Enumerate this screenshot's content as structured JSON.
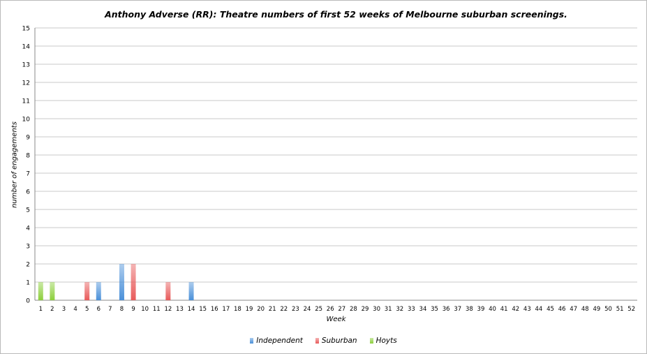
{
  "chart_data": {
    "type": "bar",
    "title": "Anthony Adverse (RR): Theatre numbers of first 52 weeks of Melbourne suburban screenings.",
    "xlabel": "Week",
    "ylabel": "number of engagements",
    "ylim": [
      0,
      15
    ],
    "yticks": [
      0,
      1,
      2,
      3,
      4,
      5,
      6,
      7,
      8,
      9,
      10,
      11,
      12,
      13,
      14,
      15
    ],
    "grid": true,
    "legend_position": "bottom",
    "categories": [
      "1",
      "2",
      "3",
      "4",
      "5",
      "6",
      "7",
      "8",
      "9",
      "10",
      "11",
      "12",
      "13",
      "14",
      "15",
      "16",
      "17",
      "18",
      "19",
      "20",
      "21",
      "22",
      "23",
      "24",
      "25",
      "26",
      "27",
      "28",
      "29",
      "30",
      "31",
      "32",
      "33",
      "34",
      "35",
      "36",
      "37",
      "38",
      "39",
      "40",
      "41",
      "42",
      "43",
      "44",
      "45",
      "46",
      "47",
      "48",
      "49",
      "50",
      "51",
      "52"
    ],
    "series": [
      {
        "name": "Independent",
        "color": "#4a90d9",
        "values": [
          0,
          0,
          0,
          0,
          0,
          1,
          0,
          2,
          0,
          0,
          0,
          0,
          0,
          1,
          0,
          0,
          0,
          0,
          0,
          0,
          0,
          0,
          0,
          0,
          0,
          0,
          0,
          0,
          0,
          0,
          0,
          0,
          0,
          0,
          0,
          0,
          0,
          0,
          0,
          0,
          0,
          0,
          0,
          0,
          0,
          0,
          0,
          0,
          0,
          0,
          0,
          0
        ]
      },
      {
        "name": "Suburban",
        "color": "#e85a5a",
        "values": [
          0,
          0,
          0,
          0,
          1,
          0,
          0,
          0,
          2,
          0,
          0,
          1,
          0,
          0,
          0,
          0,
          0,
          0,
          0,
          0,
          0,
          0,
          0,
          0,
          0,
          0,
          0,
          0,
          0,
          0,
          0,
          0,
          0,
          0,
          0,
          0,
          0,
          0,
          0,
          0,
          0,
          0,
          0,
          0,
          0,
          0,
          0,
          0,
          0,
          0,
          0,
          0
        ]
      },
      {
        "name": "Hoyts",
        "color": "#8ccf3c",
        "values": [
          1,
          1,
          0,
          0,
          0,
          0,
          0,
          0,
          0,
          0,
          0,
          0,
          0,
          0,
          0,
          0,
          0,
          0,
          0,
          0,
          0,
          0,
          0,
          0,
          0,
          0,
          0,
          0,
          0,
          0,
          0,
          0,
          0,
          0,
          0,
          0,
          0,
          0,
          0,
          0,
          0,
          0,
          0,
          0,
          0,
          0,
          0,
          0,
          0,
          0,
          0,
          0
        ]
      }
    ]
  }
}
